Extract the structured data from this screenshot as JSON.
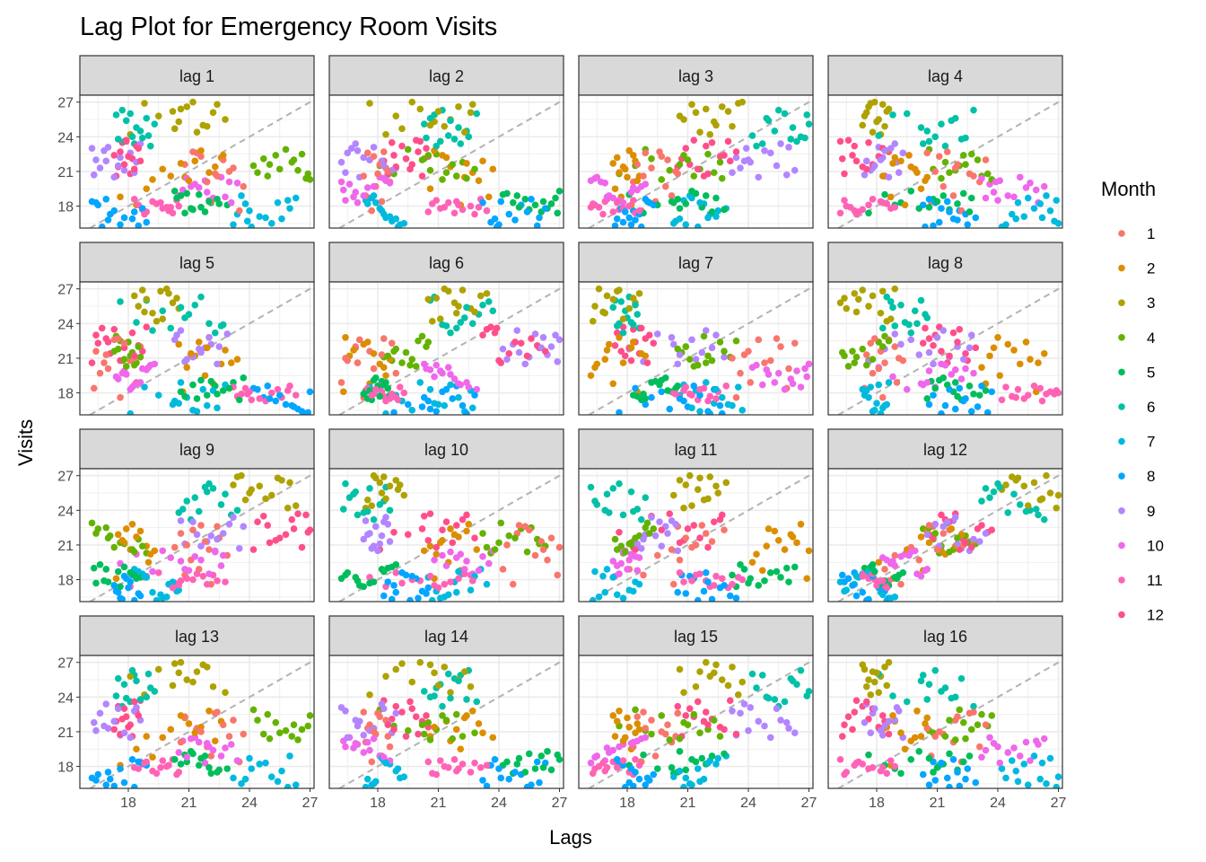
{
  "chart_data": {
    "type": "scatter",
    "title": "Lag Plot for Emergency Room Visits",
    "xlabel": "Lags",
    "ylabel": "Visits",
    "xlim": [
      15.6,
      27.2
    ],
    "ylim": [
      16.1,
      27.6
    ],
    "x_ticks": [
      18,
      21,
      24,
      27
    ],
    "y_ticks": [
      18,
      21,
      24,
      27
    ],
    "grid": true,
    "reference_line": "y = x (dashed)",
    "legend": {
      "title": "Month",
      "placement": "right",
      "entries": [
        "1",
        "2",
        "3",
        "4",
        "5",
        "6",
        "7",
        "8",
        "9",
        "10",
        "11",
        "12"
      ],
      "colors": [
        "#F8766D",
        "#DB8E00",
        "#AEA200",
        "#64B200",
        "#00BD5C",
        "#00C1A7",
        "#00BADE",
        "#00A6FF",
        "#B385FF",
        "#EF67EB",
        "#FF63B6",
        "#FF4F8A"
      ]
    },
    "series": [
      {
        "month": 1,
        "values": [
          19.2,
          17.6,
          18.4,
          18.9,
          20.1,
          19.7,
          20.8,
          22.6,
          21.3,
          22.0,
          21.6,
          22.3,
          21.0,
          20.6,
          22.7
        ]
      },
      {
        "month": 2,
        "values": [
          20.3,
          18.8,
          18.1,
          19.5,
          20.6,
          21.2,
          20.5,
          22.2,
          21.9,
          20.9,
          22.8,
          21.4,
          20.2,
          21.7,
          22.4
        ]
      },
      {
        "month": 3,
        "values": [
          24.7,
          26.9,
          24.2,
          25.8,
          26.4,
          27.0,
          25.3,
          26.1,
          24.9,
          26.6,
          25.5,
          24.4,
          26.2,
          25.0,
          26.8
        ]
      },
      {
        "month": 4,
        "values": [
          22.1,
          20.8,
          21.5,
          22.9,
          21.1,
          20.3,
          22.4,
          21.8,
          20.6,
          22.5,
          21.2,
          20.9,
          22.0,
          21.6,
          20.4
        ]
      },
      {
        "month": 5,
        "values": [
          18.3,
          17.4,
          19.0,
          18.1,
          17.8,
          19.3,
          18.6,
          17.5,
          18.9,
          18.2,
          17.7,
          19.1,
          18.4,
          17.9,
          18.7
        ]
      },
      {
        "month": 6,
        "values": [
          23.4,
          25.9,
          24.1,
          26.0,
          23.6,
          25.1,
          24.5,
          23.8,
          25.6,
          24.0,
          26.3,
          23.2,
          24.8,
          25.4,
          23.9
        ]
      },
      {
        "month": 7,
        "values": [
          17.3,
          18.5,
          16.2,
          17.8,
          18.9,
          16.5,
          17.1,
          18.2,
          16.9,
          17.6,
          18.7,
          16.4,
          17.0,
          18.3,
          16.7
        ]
      },
      {
        "month": 8,
        "values": [
          17.6,
          16.3,
          18.4,
          17.0,
          16.6,
          18.1,
          17.3,
          16.9,
          18.6,
          16.4,
          17.8,
          18.3,
          16.8,
          17.5,
          16.2
        ]
      },
      {
        "month": 9,
        "values": [
          22.2,
          20.7,
          21.8,
          23.1,
          21.3,
          22.6,
          20.5,
          21.9,
          23.4,
          22.0,
          21.1,
          20.9,
          22.8,
          21.5,
          23.0
        ]
      },
      {
        "month": 10,
        "values": [
          18.7,
          19.4,
          20.2,
          18.3,
          19.9,
          20.5,
          18.9,
          19.2,
          20.0,
          18.5,
          19.7,
          20.4,
          18.8,
          19.6,
          20.1
        ]
      },
      {
        "month": 11,
        "values": [
          17.7,
          18.2,
          17.4,
          18.6,
          17.9,
          18.0,
          17.5,
          18.4,
          17.6,
          18.1,
          17.8,
          18.5,
          17.3,
          18.3,
          17.9
        ]
      },
      {
        "month": 12,
        "values": [
          23.5,
          22.1,
          20.6,
          21.9,
          23.7,
          22.3,
          21.4,
          23.2,
          22.7,
          20.8,
          21.6,
          23.0,
          22.4,
          21.2,
          23.6
        ]
      }
    ],
    "panels": [
      "lag 1",
      "lag 2",
      "lag 3",
      "lag 4",
      "lag 5",
      "lag 6",
      "lag 7",
      "lag 8",
      "lag 9",
      "lag 10",
      "lag 11",
      "lag 12",
      "lag 13",
      "lag 14",
      "lag 15",
      "lag 16"
    ]
  }
}
